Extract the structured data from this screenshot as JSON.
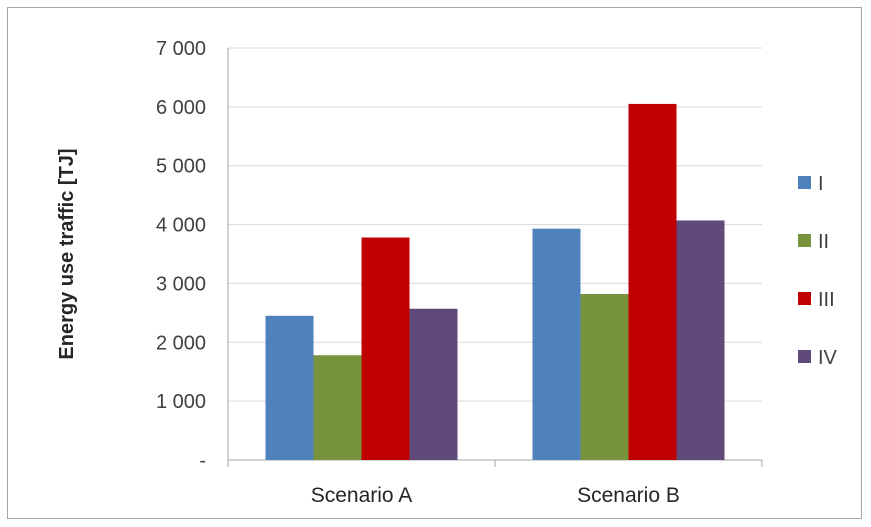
{
  "chart_data": {
    "type": "bar",
    "title": "",
    "xlabel": "",
    "ylabel": "Energy use  traffic [TJ]",
    "ylim": [
      0,
      7000
    ],
    "yticks": [
      0,
      1000,
      2000,
      3000,
      4000,
      5000,
      6000,
      7000
    ],
    "ytick_labels": [
      "-",
      "1 000",
      "2 000",
      "3 000",
      "4 000",
      "5 000",
      "6 000",
      "7 000"
    ],
    "grid": true,
    "legend_position": "right",
    "categories": [
      "Scenario A",
      "Scenario B"
    ],
    "series": [
      {
        "name": "I",
        "color": "#4f81bd",
        "values": [
          2450,
          3930
        ]
      },
      {
        "name": "II",
        "color": "#77933c",
        "values": [
          1780,
          2820
        ]
      },
      {
        "name": "III",
        "color": "#c00000",
        "values": [
          3780,
          6050
        ]
      },
      {
        "name": "IV",
        "color": "#604a7b",
        "values": [
          2570,
          4070
        ]
      }
    ]
  }
}
